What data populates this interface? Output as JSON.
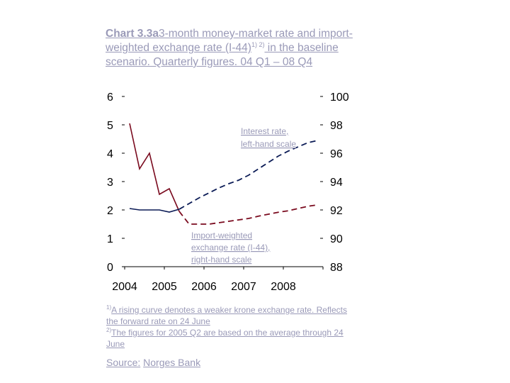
{
  "title": {
    "bold": "Chart 3.3a",
    "main": "3-month money-market rate and import-weighted exchange rate (I-44)",
    "sup": "1) 2)",
    "rest": " in the baseline scenario. Quarterly figures. 04 Q1 – 08 Q4"
  },
  "annotations": {
    "interest_line1": "Interest rate,",
    "interest_line2": "left-hand scale",
    "import_line1": "Import-weighted",
    "import_line2": "exchange rate (I-44),",
    "import_line3": "right-hand scale"
  },
  "footnotes": {
    "fn1_mark": "1)",
    "fn1_text": "A rising curve denotes a weaker krone exchange rate. Reflects the forward rate on 24 June",
    "fn2_mark": "2)",
    "fn2_text": "The figures for 2005 Q2 are based on the average through 24 June"
  },
  "source": {
    "label": "Source:",
    "text": "Norges Bank"
  },
  "colors": {
    "interest": "#7a0a1e",
    "exchange": "#0a1a55",
    "text_faded": "#9a9ab8"
  },
  "chart_data": {
    "type": "line",
    "x_ticks": [
      "2004",
      "2005",
      "2006",
      "2007",
      "2008"
    ],
    "y_left": {
      "range": [
        0,
        6
      ],
      "ticks": [
        "0",
        "1",
        "2",
        "3",
        "4",
        "5",
        "6"
      ]
    },
    "y_right": {
      "range": [
        88,
        100
      ],
      "ticks": [
        "88",
        "90",
        "92",
        "94",
        "96",
        "98",
        "100"
      ]
    },
    "grid": false,
    "series": [
      {
        "axis": "left",
        "style": "solid-then-dashed",
        "historical_points": 6,
        "values": [
          5.05,
          3.45,
          4.0,
          2.55,
          2.75,
          1.95,
          1.5,
          1.5,
          1.5,
          1.55,
          1.6,
          1.65,
          1.7,
          1.78,
          1.85,
          1.92,
          1.97,
          2.05,
          2.13,
          2.18
        ]
      },
      {
        "axis": "right",
        "style": "solid-then-dashed",
        "historical_points": 6,
        "values": [
          92.1,
          92.0,
          92.0,
          92.0,
          91.85,
          92.05,
          92.45,
          92.85,
          93.2,
          93.55,
          93.85,
          94.1,
          94.45,
          94.9,
          95.35,
          95.8,
          96.15,
          96.45,
          96.75,
          96.9
        ]
      }
    ]
  }
}
